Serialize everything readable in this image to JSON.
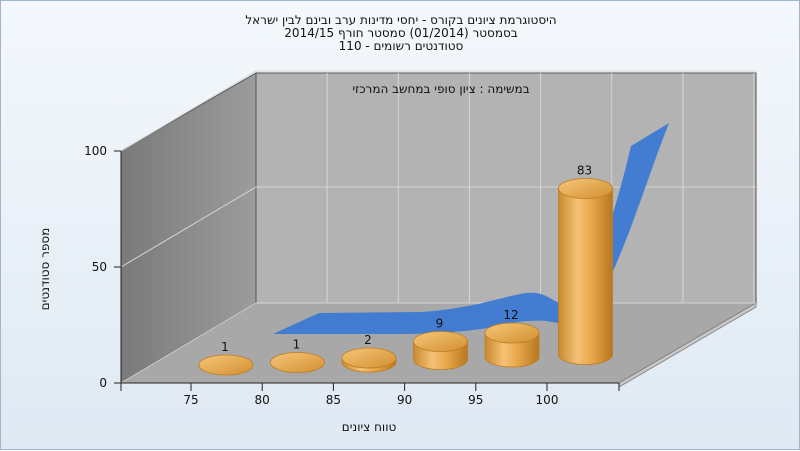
{
  "header": {
    "title_line1": "היסטוגרמת ציונים בקורס - יחסי מדינות ערב ובינם לבין ישראל",
    "title_line2": "בסמסטר  (01/2014)  סמסטר חורף  2014/15",
    "title_line3": "סטודנטים רשומים - 110"
  },
  "chart_data": {
    "type": "bar",
    "subtitle": "במשימה : ציון סופי במחשב המרכזי",
    "xlabel": "טווח ציונים",
    "ylabel": "מספר סטודנטים",
    "categories": [
      "75",
      "80",
      "85",
      "90",
      "95",
      "100"
    ],
    "values": [
      1,
      1,
      2,
      9,
      12,
      83
    ],
    "data_labels": [
      "1",
      "1",
      "2",
      "9",
      "12",
      "83"
    ],
    "y_ticks": [
      "0",
      "50",
      "100"
    ],
    "x_ticks": [
      "75",
      "80",
      "85",
      "90",
      "95",
      "100"
    ],
    "ylim": [
      0,
      100
    ],
    "trend_series": [
      1,
      1,
      2,
      9,
      12,
      83
    ],
    "grid": true,
    "colors": {
      "bar": "#e8a84a",
      "bar_dark": "#c07d20",
      "trend": "#3a78d4",
      "wall": "#b0b0b0",
      "side_wall": "#8a8a8a",
      "floor": "#a6a6a6"
    }
  }
}
